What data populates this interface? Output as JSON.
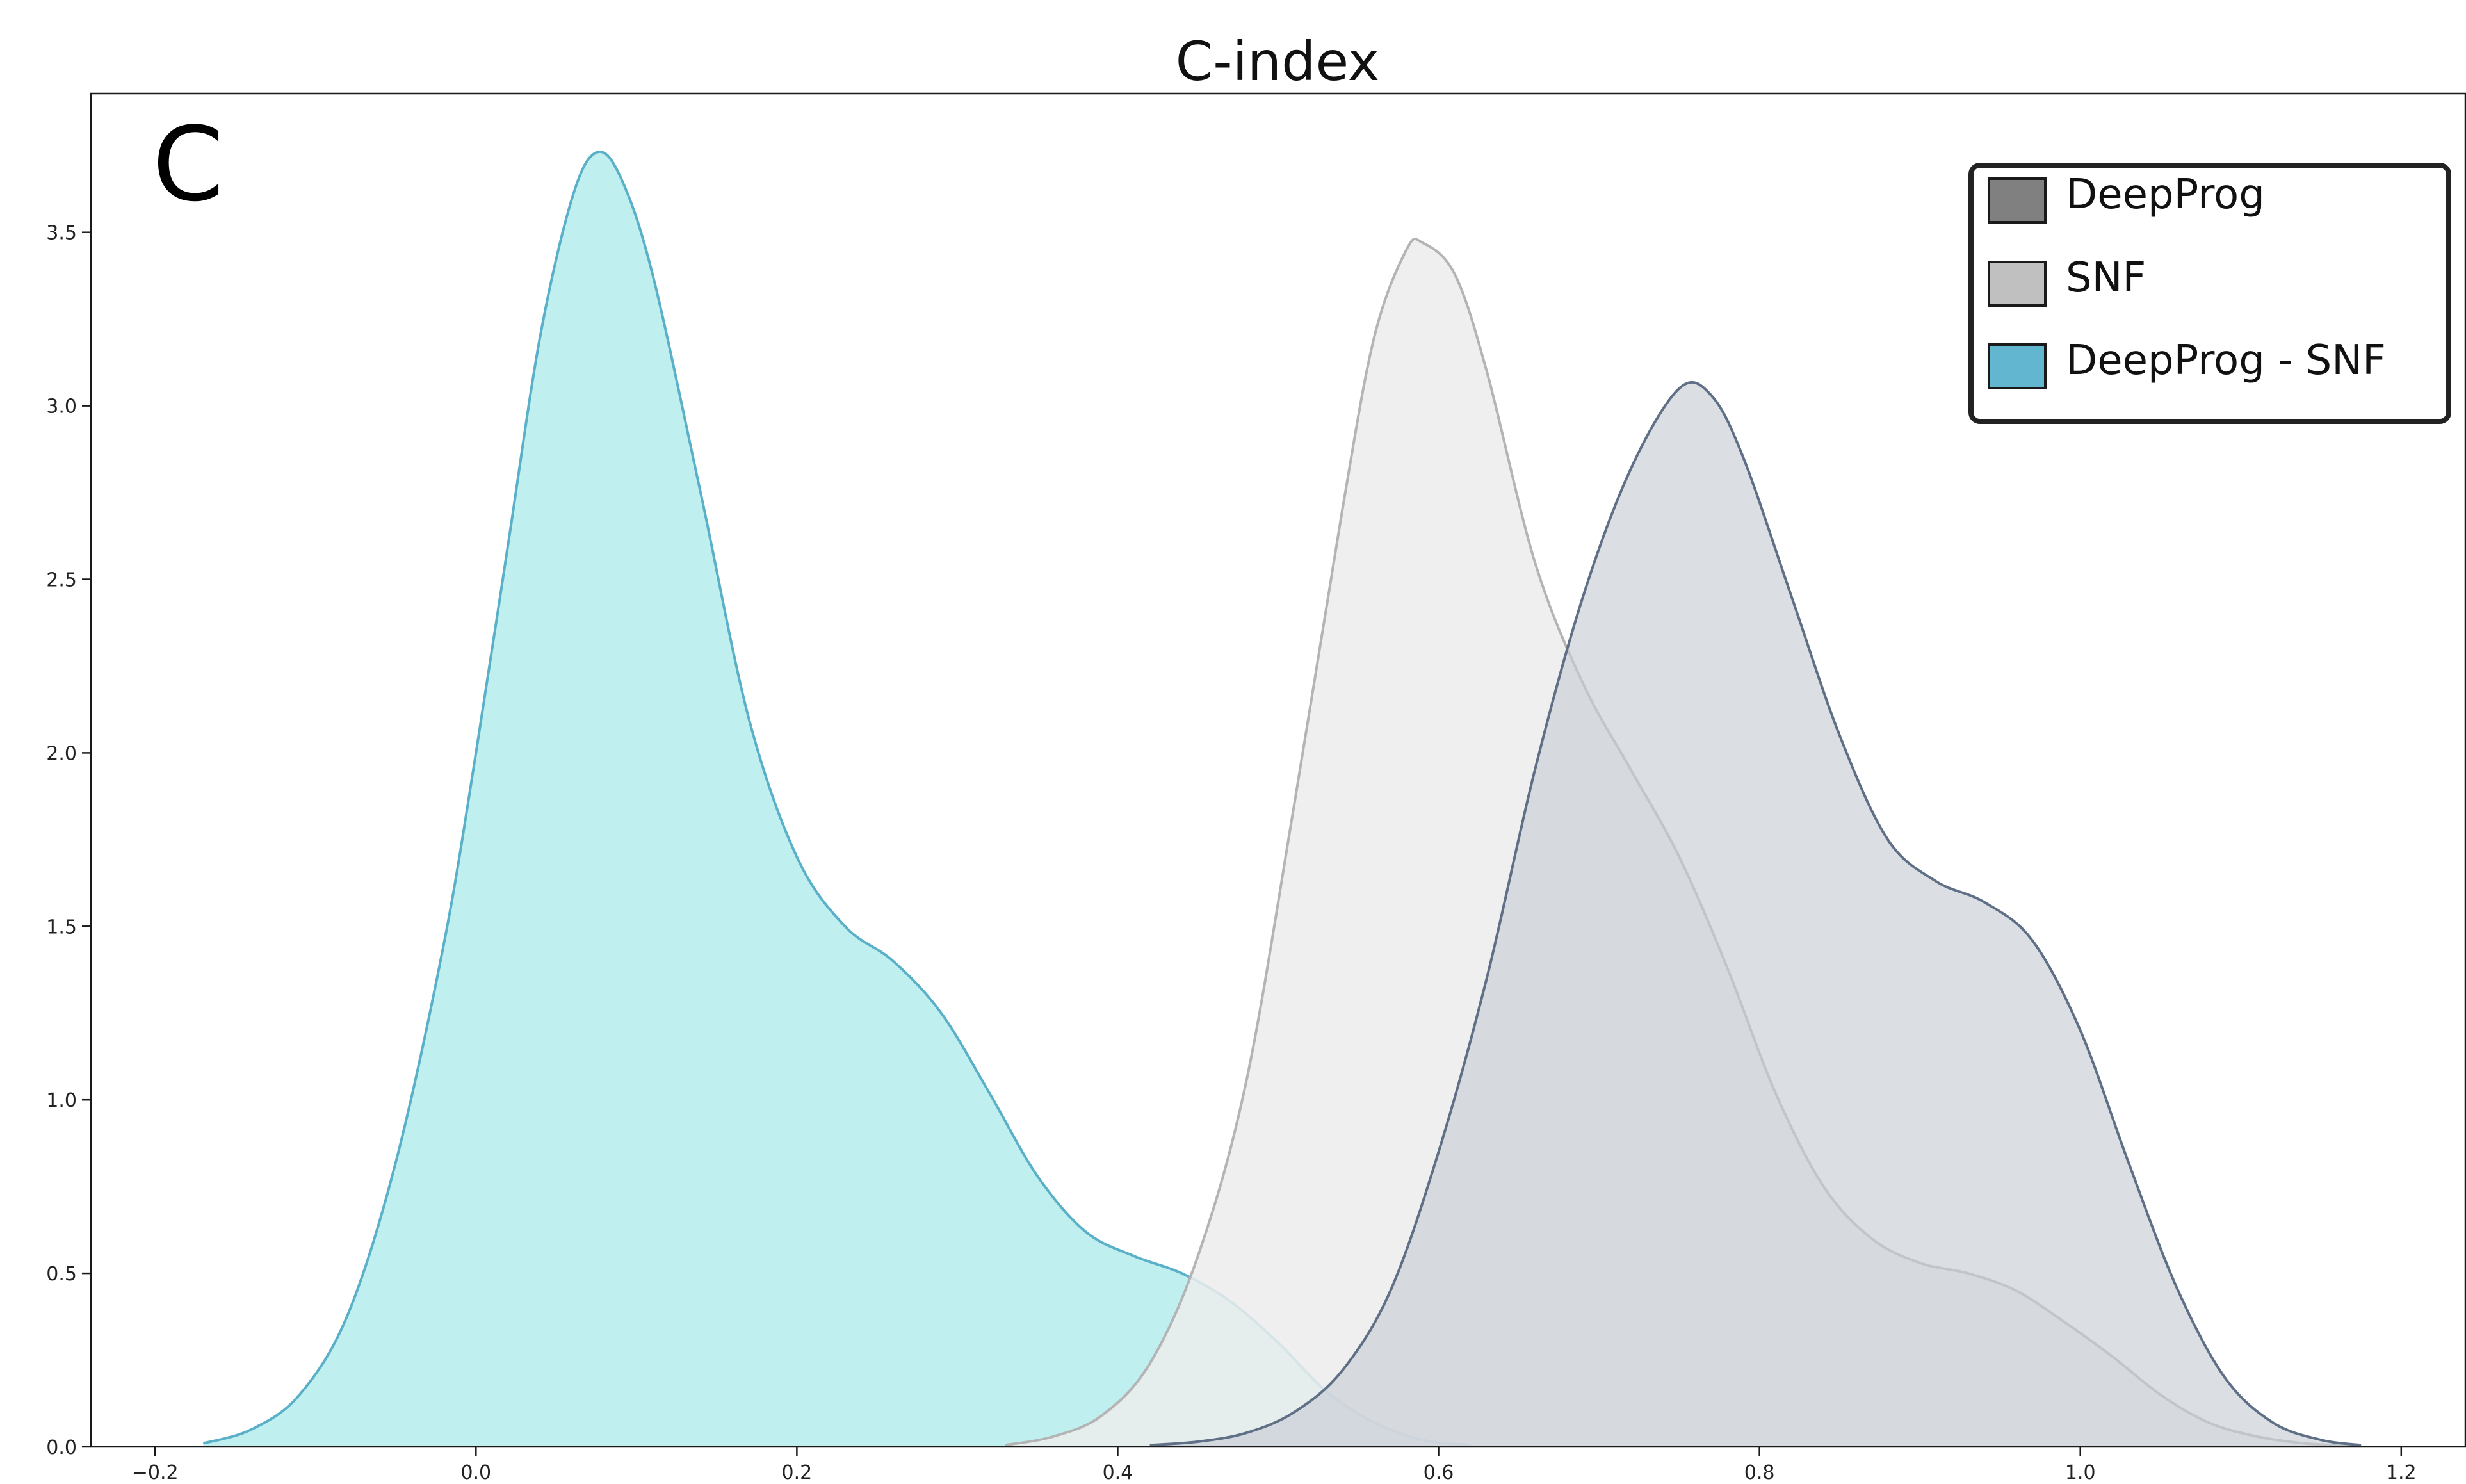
{
  "chart_data": {
    "type": "area",
    "title": "C-index",
    "panel_label": "C",
    "xlabel": "",
    "ylabel": "",
    "xlim": [
      -0.24,
      1.24
    ],
    "ylim": [
      0,
      3.9
    ],
    "xticks": [
      -0.2,
      0.0,
      0.2,
      0.4,
      0.6,
      0.8,
      1.0,
      1.2
    ],
    "xtick_labels": [
      "−0.2",
      "0.0",
      "0.2",
      "0.4",
      "0.6",
      "0.8",
      "1.0",
      "1.2"
    ],
    "yticks": [
      0.0,
      0.5,
      1.0,
      1.5,
      2.0,
      2.5,
      3.0,
      3.5
    ],
    "ytick_labels": [
      "0.0",
      "0.5",
      "1.0",
      "1.5",
      "2.0",
      "2.5",
      "3.0",
      "3.5"
    ],
    "grid": false,
    "legend_position": "top-right",
    "legend": [
      {
        "name": "DeepProg",
        "swatch_color": "#808080"
      },
      {
        "name": "SNF",
        "swatch_color": "#c0c0c0"
      },
      {
        "name": "DeepProg - SNF",
        "swatch_color": "#62b6cf"
      }
    ],
    "series": [
      {
        "name": "DeepProg - SNF",
        "fill": "#bdeeee",
        "stroke": "#5ab0c8",
        "fill_opacity": 0.95,
        "points": [
          [
            -0.17,
            0.01
          ],
          [
            -0.14,
            0.05
          ],
          [
            -0.11,
            0.15
          ],
          [
            -0.08,
            0.38
          ],
          [
            -0.05,
            0.82
          ],
          [
            -0.02,
            1.45
          ],
          [
            0.0,
            2.0
          ],
          [
            0.02,
            2.6
          ],
          [
            0.04,
            3.2
          ],
          [
            0.06,
            3.6
          ],
          [
            0.075,
            3.73
          ],
          [
            0.09,
            3.66
          ],
          [
            0.11,
            3.38
          ],
          [
            0.14,
            2.75
          ],
          [
            0.17,
            2.1
          ],
          [
            0.2,
            1.7
          ],
          [
            0.23,
            1.5
          ],
          [
            0.26,
            1.4
          ],
          [
            0.29,
            1.25
          ],
          [
            0.32,
            1.02
          ],
          [
            0.35,
            0.78
          ],
          [
            0.38,
            0.62
          ],
          [
            0.41,
            0.55
          ],
          [
            0.44,
            0.5
          ],
          [
            0.47,
            0.42
          ],
          [
            0.5,
            0.3
          ],
          [
            0.53,
            0.16
          ],
          [
            0.56,
            0.07
          ],
          [
            0.59,
            0.02
          ],
          [
            0.62,
            0.005
          ]
        ]
      },
      {
        "name": "SNF",
        "fill": "#ececec",
        "stroke": "#b4b4b4",
        "fill_opacity": 0.85,
        "points": [
          [
            0.33,
            0.005
          ],
          [
            0.36,
            0.03
          ],
          [
            0.39,
            0.09
          ],
          [
            0.42,
            0.24
          ],
          [
            0.45,
            0.55
          ],
          [
            0.48,
            1.05
          ],
          [
            0.51,
            1.85
          ],
          [
            0.54,
            2.7
          ],
          [
            0.56,
            3.2
          ],
          [
            0.58,
            3.45
          ],
          [
            0.59,
            3.47
          ],
          [
            0.61,
            3.38
          ],
          [
            0.63,
            3.1
          ],
          [
            0.66,
            2.55
          ],
          [
            0.69,
            2.2
          ],
          [
            0.72,
            1.95
          ],
          [
            0.75,
            1.7
          ],
          [
            0.78,
            1.38
          ],
          [
            0.81,
            1.02
          ],
          [
            0.84,
            0.75
          ],
          [
            0.87,
            0.6
          ],
          [
            0.9,
            0.53
          ],
          [
            0.93,
            0.5
          ],
          [
            0.96,
            0.45
          ],
          [
            0.99,
            0.36
          ],
          [
            1.02,
            0.26
          ],
          [
            1.05,
            0.15
          ],
          [
            1.08,
            0.07
          ],
          [
            1.11,
            0.03
          ],
          [
            1.14,
            0.01
          ],
          [
            1.17,
            0.003
          ]
        ]
      },
      {
        "name": "DeepProg",
        "fill": "#c8ccd4",
        "stroke": "#5f6f85",
        "fill_opacity": 0.65,
        "points": [
          [
            0.42,
            0.005
          ],
          [
            0.45,
            0.015
          ],
          [
            0.48,
            0.04
          ],
          [
            0.51,
            0.1
          ],
          [
            0.54,
            0.22
          ],
          [
            0.57,
            0.45
          ],
          [
            0.6,
            0.85
          ],
          [
            0.63,
            1.35
          ],
          [
            0.66,
            1.95
          ],
          [
            0.69,
            2.45
          ],
          [
            0.72,
            2.82
          ],
          [
            0.75,
            3.05
          ],
          [
            0.77,
            3.03
          ],
          [
            0.79,
            2.85
          ],
          [
            0.82,
            2.45
          ],
          [
            0.85,
            2.05
          ],
          [
            0.88,
            1.75
          ],
          [
            0.91,
            1.63
          ],
          [
            0.94,
            1.57
          ],
          [
            0.97,
            1.46
          ],
          [
            1.0,
            1.2
          ],
          [
            1.03,
            0.82
          ],
          [
            1.06,
            0.46
          ],
          [
            1.09,
            0.2
          ],
          [
            1.12,
            0.07
          ],
          [
            1.15,
            0.02
          ],
          [
            1.175,
            0.005
          ]
        ]
      }
    ]
  }
}
